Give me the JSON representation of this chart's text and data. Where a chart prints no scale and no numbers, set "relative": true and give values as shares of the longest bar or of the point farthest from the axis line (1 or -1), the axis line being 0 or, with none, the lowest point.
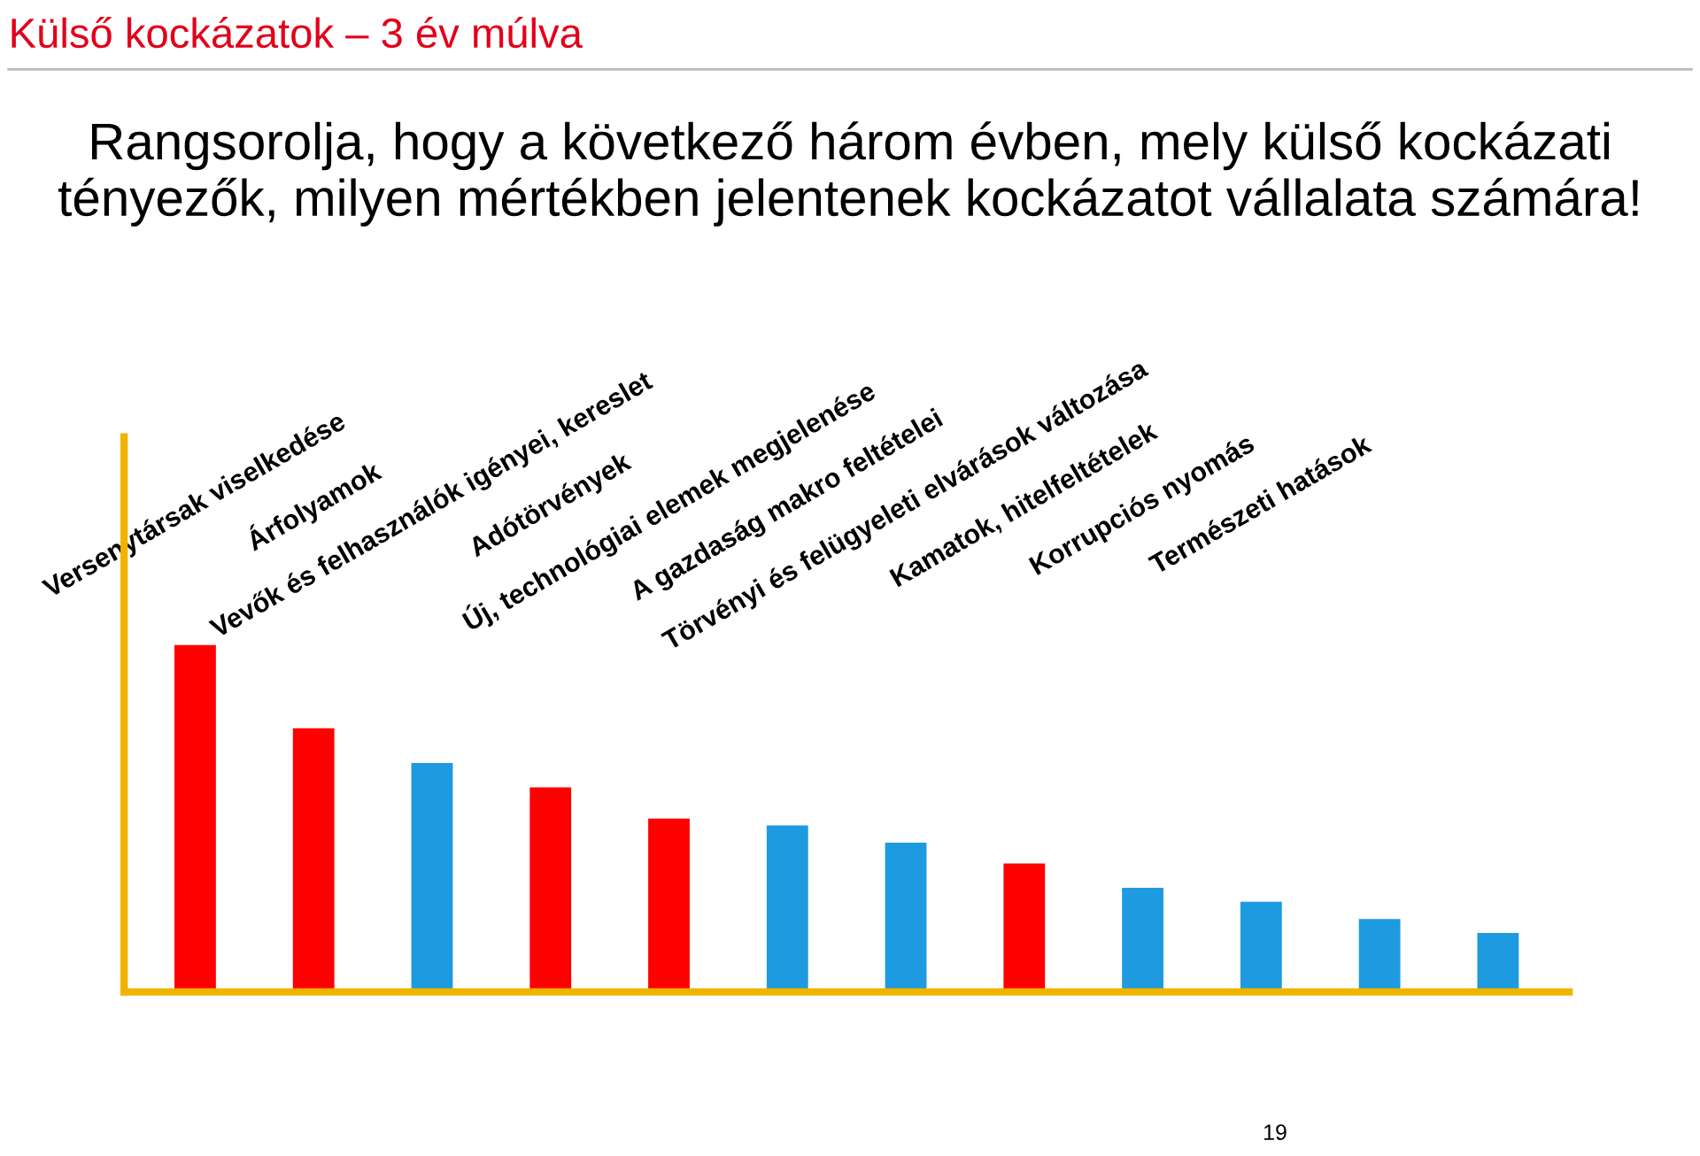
{
  "chart_data": {
    "type": "bar",
    "relative": true,
    "title": "Külső kockázatok – 3 év múlva",
    "subtitle": "Rangsorolja, hogy a következő három évben, mely külső kockázati tényezők, milyen mértékben jelentenek kockázatot vállalata számára!",
    "categories": [
      "Versenytársak viselkedése",
      "Árfolyamok",
      "Vevők és felhasználók igényei, kereslet",
      "Adótörvények",
      "Új, technológiai elemek megjelenése",
      "A gazdaság makro feltételei",
      "Törvényi és felügyeleti elvárások változása",
      "Kamatok, hitelfeltételek",
      "Korrupciós nyomás",
      "Természeti hatások",
      null,
      null
    ],
    "values": [
      1,
      0.76,
      0.66,
      0.59,
      0.5,
      0.48,
      0.43,
      0.37,
      0.3,
      0.26,
      0.21,
      0.17
    ],
    "colors": [
      "#ff0000",
      "#ff0000",
      "#1e9be0",
      "#ff0000",
      "#ff0000",
      "#1e9be0",
      "#1e9be0",
      "#ff0000",
      "#1e9be0",
      "#1e9be0",
      "#1e9be0",
      "#1e9be0"
    ],
    "annotations": [
      "19"
    ]
  }
}
